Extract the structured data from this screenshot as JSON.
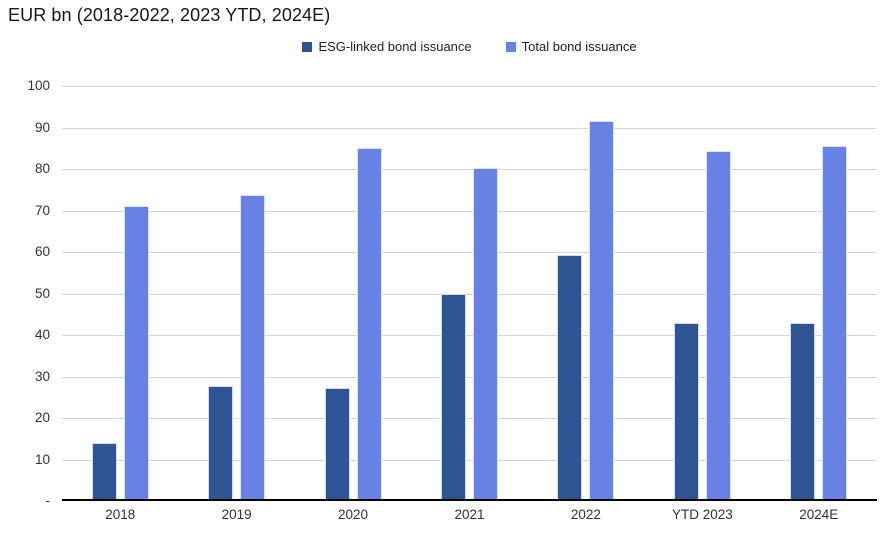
{
  "chart_data": {
    "type": "bar",
    "title": "EUR bn (2018-2022, 2023 YTD, 2024E)",
    "categories": [
      "2018",
      "2019",
      "2020",
      "2021",
      "2022",
      "YTD 2023",
      "2024E"
    ],
    "series": [
      {
        "name": "ESG-linked bond issuance",
        "color": "#2E5493",
        "values": [
          13.5,
          27.3,
          26.8,
          49.4,
          58.7,
          42.4,
          42.4
        ]
      },
      {
        "name": "Total bond issuance",
        "color": "#6881E4",
        "values": [
          70.5,
          73.2,
          84.6,
          79.7,
          91.0,
          83.8,
          85.0
        ]
      }
    ],
    "xlabel": "",
    "ylabel": "",
    "ylim": [
      0,
      100
    ],
    "ytick_step": 10,
    "ytick_labels": [
      "-",
      "10",
      "20",
      "30",
      "40",
      "50",
      "60",
      "70",
      "80",
      "90",
      "100"
    ],
    "grid": true,
    "gridline_color": "#d7d7d7",
    "axis_line_color": "#000000",
    "legend_position": "top-center"
  }
}
